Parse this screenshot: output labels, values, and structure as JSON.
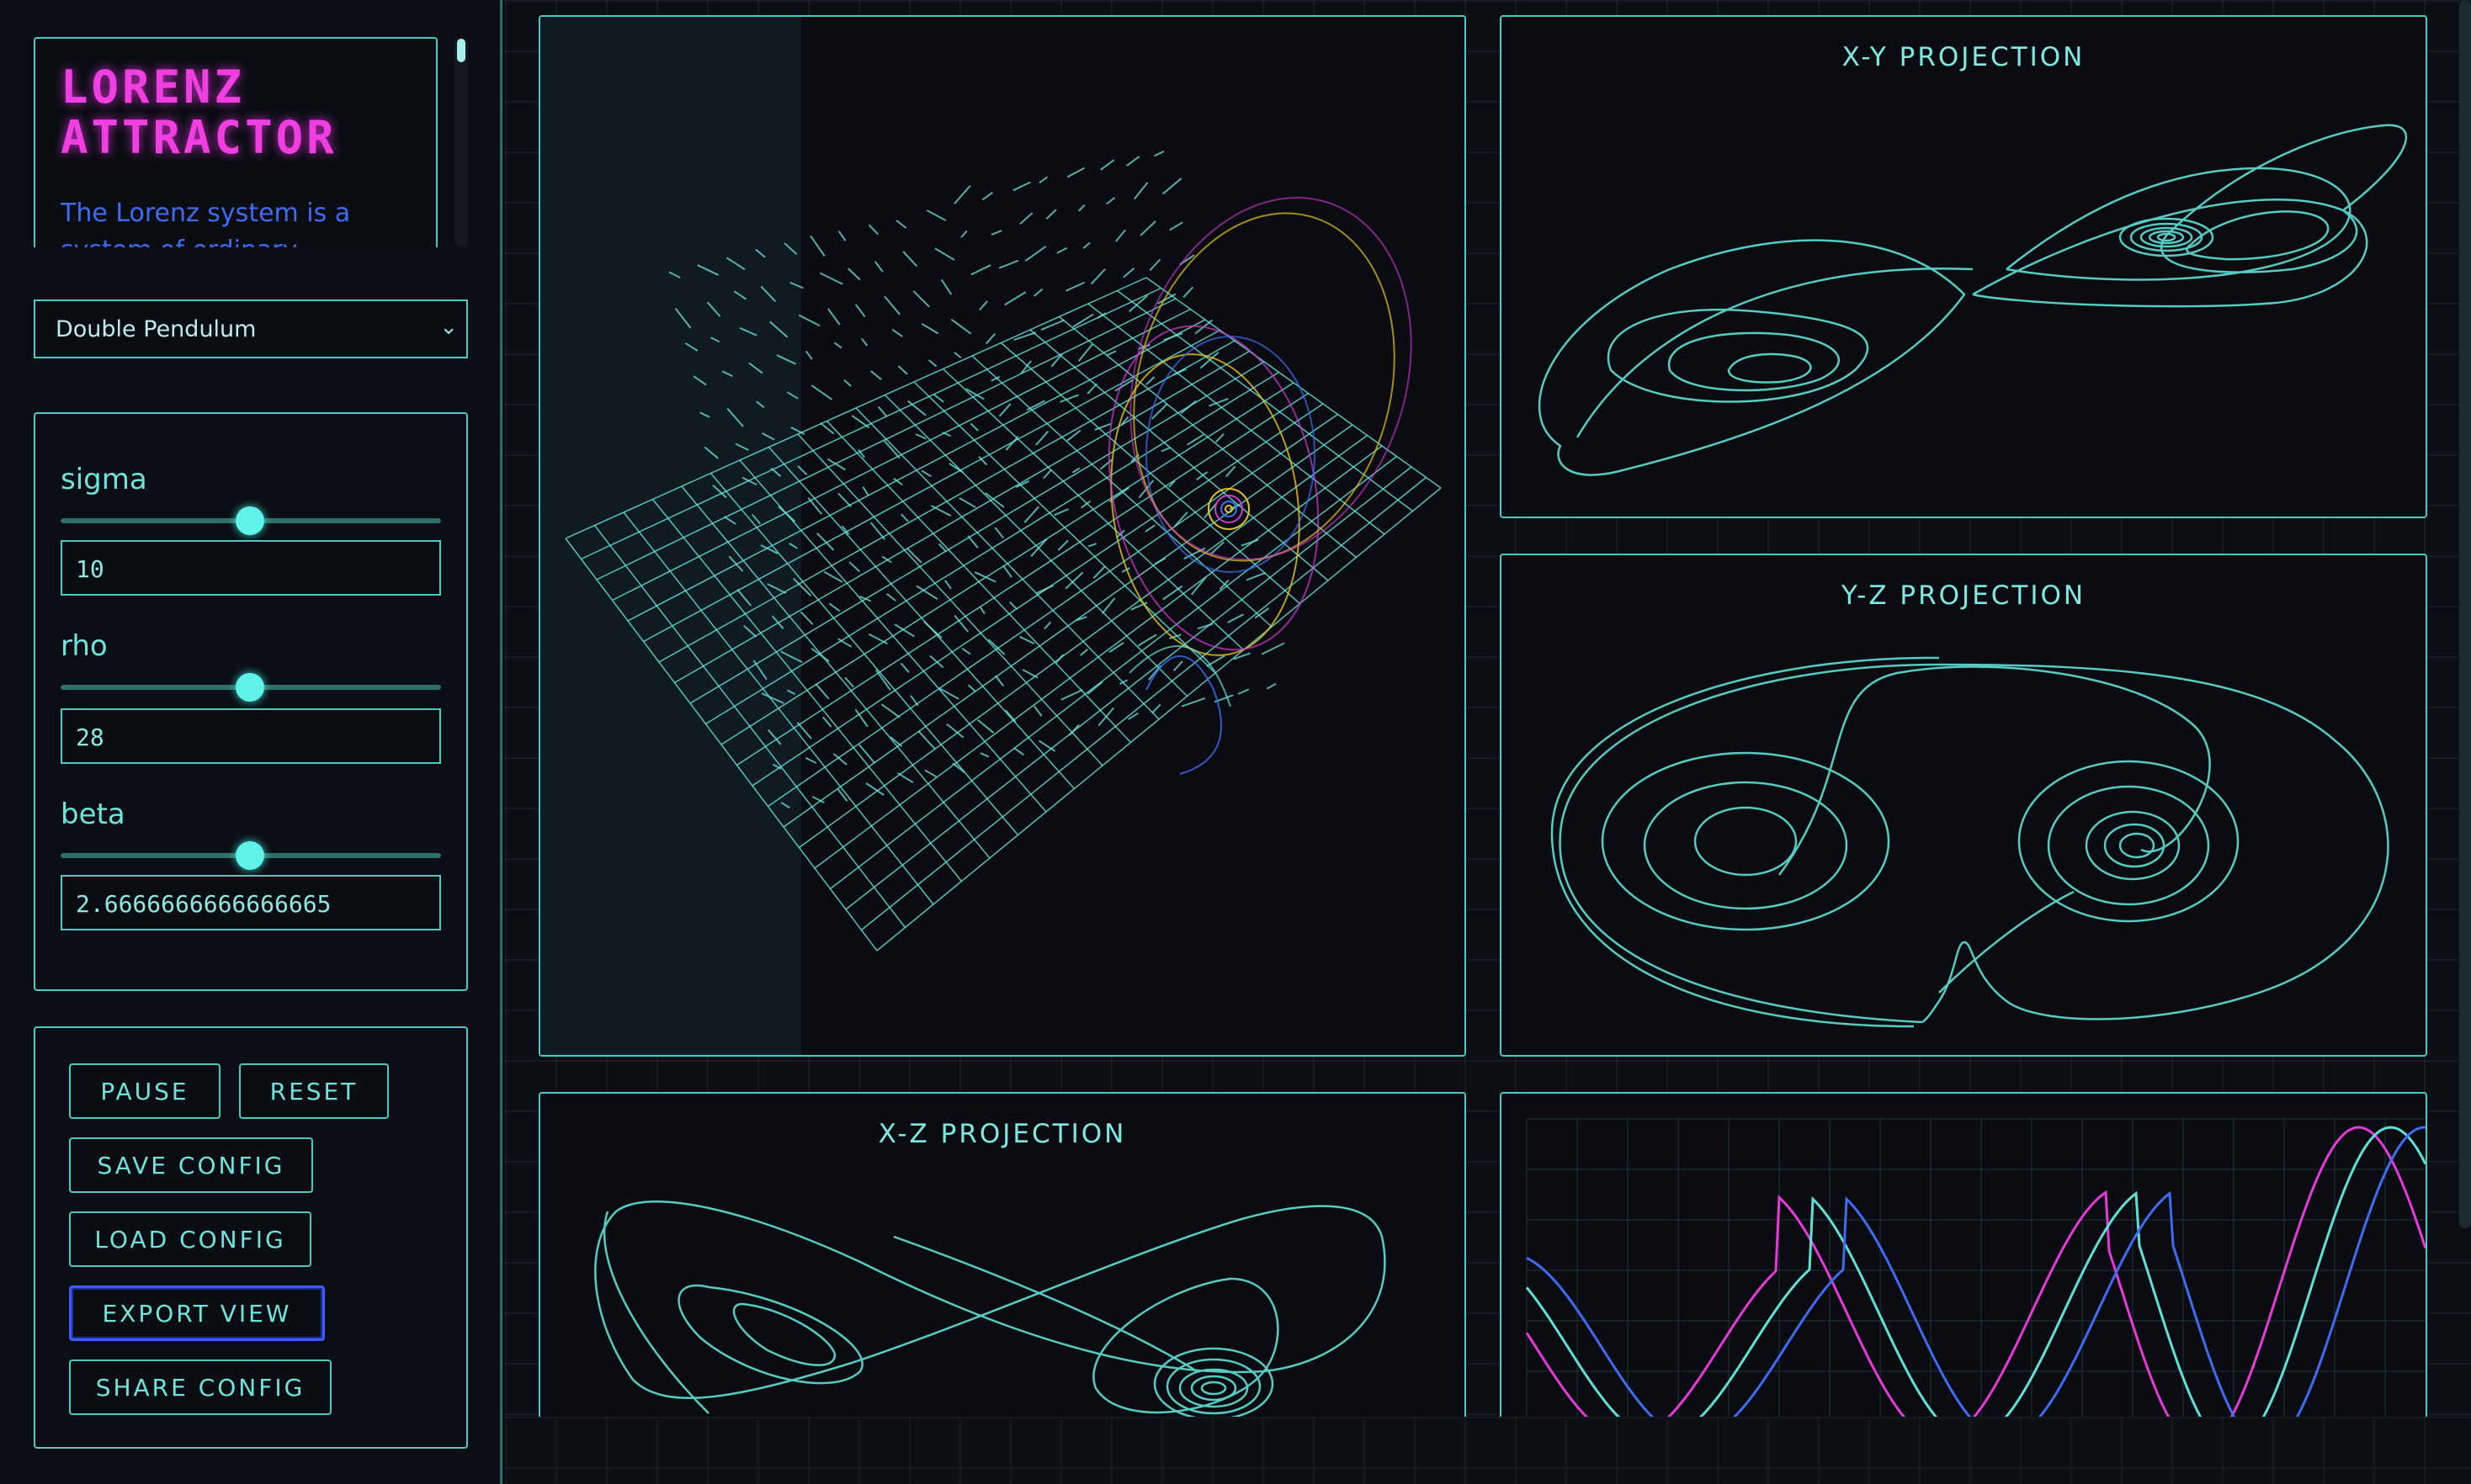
{
  "sidebar": {
    "title": "LORENZ ATTRACTOR",
    "description": "The Lorenz system is a system of ordinary",
    "preset": {
      "selected": "Double Pendulum"
    },
    "params": [
      {
        "label": "sigma",
        "value": "10",
        "slider_fraction": 0.5
      },
      {
        "label": "rho",
        "value": "28",
        "slider_fraction": 0.5
      },
      {
        "label": "beta",
        "value": "2.6666666666666665",
        "slider_fraction": 0.5
      }
    ],
    "actions": {
      "pause": "PAUSE",
      "reset": "RESET",
      "save": "SAVE CONFIG",
      "load": "LOAD CONFIG",
      "export": "EXPORT VIEW",
      "share": "SHARE CONFIG"
    }
  },
  "views": {
    "xy_title": "X-Y PROJECTION",
    "yz_title": "Y-Z PROJECTION",
    "xz_title": "X-Z PROJECTION"
  },
  "colors": {
    "accent": "#4cc9c2",
    "title": "#f03fe0",
    "series_magenta": "#e63ad8",
    "series_teal": "#5fe0d6",
    "series_blue": "#3f6bf2"
  },
  "icons": {
    "preset_chevron": "chevron-down-icon"
  }
}
